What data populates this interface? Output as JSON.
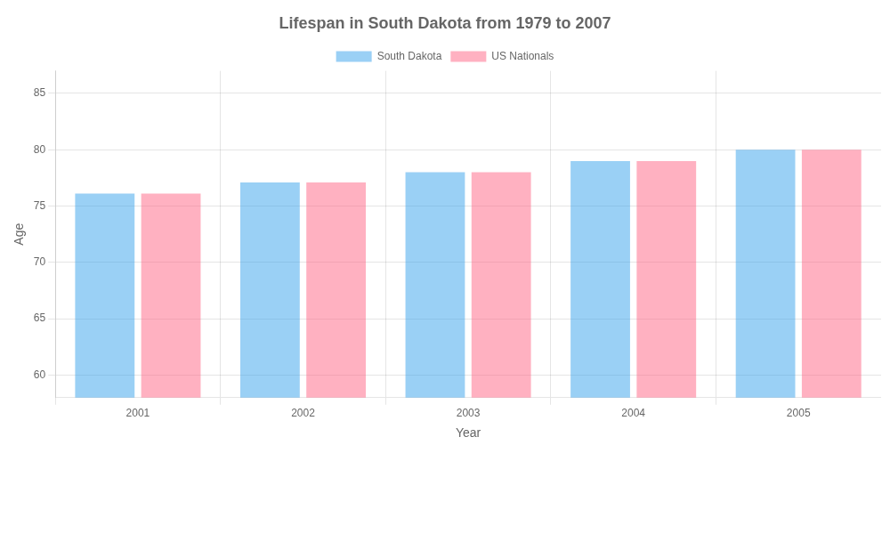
{
  "chart_data": {
    "type": "bar",
    "title": "Lifespan in South Dakota from 1979 to 2007",
    "x_label": "Year",
    "y_label": "Age",
    "categories": [
      "2001",
      "2002",
      "2003",
      "2004",
      "2005"
    ],
    "series": [
      {
        "name": "South Dakota",
        "values": [
          76.1,
          77.1,
          78.0,
          79.0,
          80.0
        ]
      },
      {
        "name": "US Nationals",
        "values": [
          76.1,
          77.1,
          78.0,
          79.0,
          80.0
        ]
      }
    ],
    "ylim": [
      58,
      87
    ],
    "yticks": [
      60,
      65,
      70,
      75,
      80,
      85
    ],
    "grid": true,
    "legend": "top"
  }
}
